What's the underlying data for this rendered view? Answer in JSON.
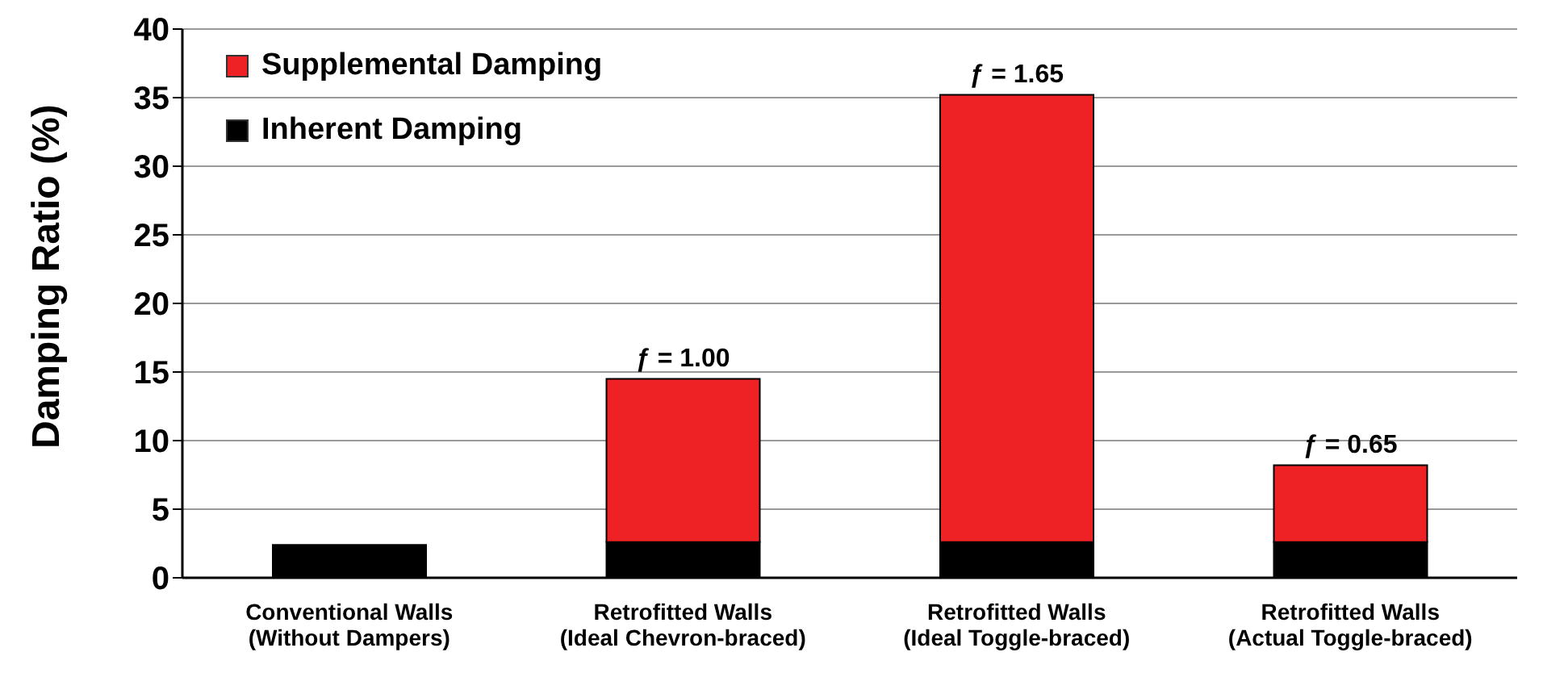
{
  "chart_data": {
    "type": "bar",
    "ylabel": "Damping Ratio (%)",
    "categories": [
      "Conventional Walls\n(Without Dampers)",
      "Retrofitted Walls\n(Ideal Chevron-braced)",
      "Retrofitted Walls\n(Ideal Toggle-braced)",
      "Retrofitted Walls\n(Actual Toggle-braced)"
    ],
    "series": [
      {
        "name": "Inherent Damping",
        "color": "#000000",
        "values": [
          2.4,
          2.6,
          2.6,
          2.6
        ]
      },
      {
        "name": "Supplemental Damping",
        "color": "#ee2224",
        "values": [
          null,
          11.9,
          32.6,
          5.6
        ]
      }
    ],
    "stacked": true,
    "ylim": [
      0,
      40
    ],
    "yticks": [
      0,
      5,
      10,
      15,
      20,
      25,
      30,
      35,
      40
    ],
    "grid": "y",
    "legend": "top left",
    "annotations": [
      {
        "text": "ƒ = 1.00",
        "x": "Retrofitted Walls\n(Ideal Chevron-braced)",
        "y": 14.5
      },
      {
        "text": "ƒ = 1.65",
        "x": "Retrofitted Walls\n(Ideal Toggle-braced)",
        "y": 35.2
      },
      {
        "text": "ƒ = 0.65",
        "x": "Retrofitted Walls\n(Actual Toggle-braced)",
        "y": 8.2
      }
    ]
  }
}
